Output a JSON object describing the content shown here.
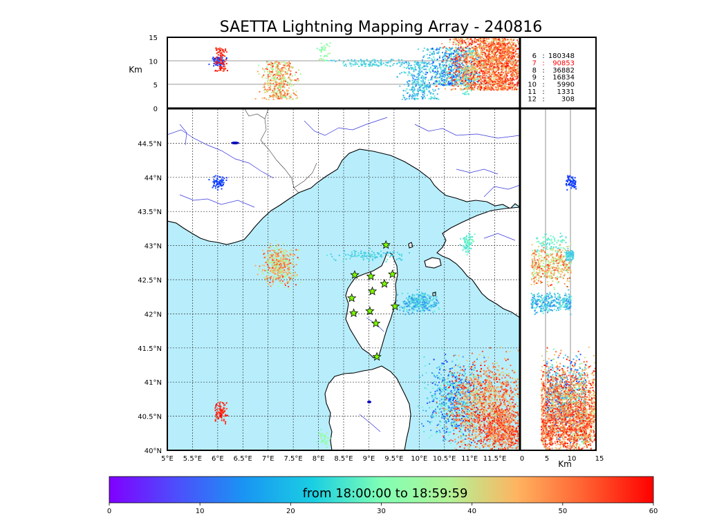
{
  "chart_data": {
    "type": "scatter",
    "title": "SAETTA Lightning Mapping Array - 240816",
    "time_range_label": "from 18:00:00 to 18:59:59",
    "colorbar": {
      "min": 0,
      "max": 60,
      "ticks": [
        "0",
        "10",
        "20",
        "30",
        "40",
        "50",
        "60"
      ],
      "colormap": "rainbow"
    },
    "map": {
      "xlim": [
        5,
        12
      ],
      "ylim": [
        40,
        45
      ],
      "xtick_labels": [
        "5°E",
        "5.5°E",
        "6°E",
        "6.5°E",
        "7°E",
        "7.5°E",
        "8°E",
        "8.5°E",
        "9°E",
        "9.5°E",
        "10°E",
        "10.5°E",
        "11°E",
        "11.5°E"
      ],
      "ytick_labels": [
        "40°N",
        "40.5°N",
        "41°N",
        "41.5°N",
        "42°N",
        "42.5°N",
        "43°N",
        "43.5°N",
        "44°N",
        "44.5°N"
      ],
      "sea_color": "#b8eefc",
      "land_color": "#ffffff",
      "river_color": "#3333dd",
      "grid": true
    },
    "altitude_top": {
      "ylabel": "Km",
      "ylim": [
        0,
        15
      ],
      "ytick_labels": [
        "0",
        "5",
        "10",
        "15"
      ]
    },
    "altitude_side": {
      "xlabel": "Km",
      "xlim": [
        0,
        15
      ],
      "xtick_labels": [
        "0",
        "5",
        "10",
        "15"
      ]
    },
    "histogram": [
      {
        "bin": "6",
        "count": "180348",
        "color": "#000000"
      },
      {
        "bin": "7",
        "count": "90853",
        "color": "#ff0000"
      },
      {
        "bin": "8",
        "count": "36882",
        "color": "#000000"
      },
      {
        "bin": "9",
        "count": "16834",
        "color": "#000000"
      },
      {
        "bin": "10",
        "count": "5990",
        "color": "#000000"
      },
      {
        "bin": "11",
        "count": "1331",
        "color": "#000000"
      },
      {
        "bin": "12",
        "count": "308",
        "color": "#000000"
      }
    ],
    "stations": [
      [
        9.34,
        43.01
      ],
      [
        8.72,
        42.57
      ],
      [
        9.04,
        42.55
      ],
      [
        9.47,
        42.58
      ],
      [
        9.31,
        42.44
      ],
      [
        9.07,
        42.33
      ],
      [
        8.66,
        42.23
      ],
      [
        8.7,
        42.01
      ],
      [
        9.02,
        42.04
      ],
      [
        9.52,
        42.11
      ],
      [
        9.14,
        41.86
      ],
      [
        9.16,
        41.37
      ]
    ],
    "storm_cells": [
      {
        "lon": 6.0,
        "lat": 43.93,
        "lon_spread": 0.07,
        "lat_spread": 0.05,
        "alt_min": 9,
        "alt_max": 11,
        "t0": 3,
        "t1": 7,
        "n": 70
      },
      {
        "lon": 7.2,
        "lat": 42.72,
        "lon_spread": 0.16,
        "lat_spread": 0.14,
        "alt_min": 2,
        "alt_max": 10,
        "t0": 32,
        "t1": 56,
        "n": 420
      },
      {
        "lon": 6.05,
        "lat": 40.58,
        "lon_spread": 0.06,
        "lat_spread": 0.07,
        "alt_min": 8,
        "alt_max": 13,
        "t0": 54,
        "t1": 60,
        "n": 90
      },
      {
        "lon": 8.1,
        "lat": 40.18,
        "lon_spread": 0.05,
        "lat_spread": 0.06,
        "alt_min": 10,
        "alt_max": 14,
        "t0": 28,
        "t1": 36,
        "n": 40
      },
      {
        "lon": 10.0,
        "lat": 42.17,
        "lon_spread": 0.18,
        "lat_spread": 0.07,
        "alt_min": 2,
        "alt_max": 10,
        "t0": 10,
        "t1": 24,
        "n": 320
      },
      {
        "lon": 10.95,
        "lat": 43.05,
        "lon_spread": 0.06,
        "lat_spread": 0.08,
        "alt_min": 3,
        "alt_max": 9,
        "t0": 18,
        "t1": 30,
        "n": 80
      },
      {
        "lon": 10.7,
        "lat": 40.75,
        "lon_spread": 0.28,
        "lat_spread": 0.28,
        "alt_min": 5,
        "alt_max": 13,
        "t0": 4,
        "t1": 28,
        "n": 700
      },
      {
        "lon": 11.35,
        "lat": 40.65,
        "lon_spread": 0.38,
        "lat_spread": 0.32,
        "alt_min": 4,
        "alt_max": 15,
        "t0": 38,
        "t1": 60,
        "n": 1500
      },
      {
        "lon": 11.7,
        "lat": 40.3,
        "lon_spread": 0.2,
        "lat_spread": 0.18,
        "alt_min": 4,
        "alt_max": 14,
        "t0": 44,
        "t1": 60,
        "n": 500
      },
      {
        "lon": 9.05,
        "lat": 42.87,
        "lon_spread": 0.35,
        "lat_spread": 0.04,
        "alt_min": 9,
        "alt_max": 10.5,
        "t0": 16,
        "t1": 22,
        "n": 120
      }
    ]
  }
}
